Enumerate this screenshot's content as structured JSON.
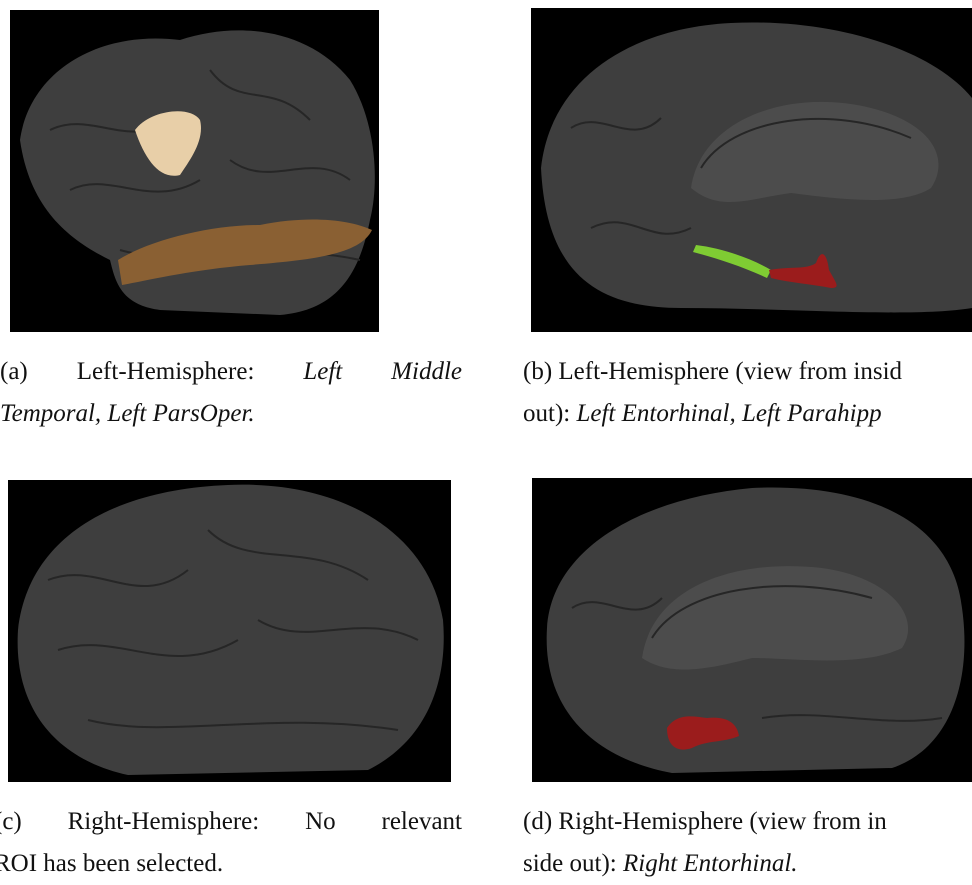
{
  "panels": [
    {
      "caption": [
        [
          {
            "text": "(a) Left-Hemisphere:",
            "style": "normal"
          },
          {
            "text": "Left Middle",
            "style": "italic"
          }
        ],
        [
          {
            "text": "Temporal, Left ParsOper.",
            "style": "italic"
          }
        ]
      ]
    },
    {
      "caption": [
        [
          {
            "text": "(b) Left-Hemisphere (view from insid",
            "style": "normal"
          }
        ],
        [
          {
            "text": "out):",
            "style": "normal"
          },
          {
            "text": "Left Entorhinal, Left Parahipp",
            "style": "italic"
          }
        ]
      ]
    },
    {
      "caption": [
        [
          {
            "text": "(c) Right-Hemisphere: No relevant",
            "style": "normal"
          }
        ],
        [
          {
            "text": "ROI has been selected.",
            "style": "normal"
          }
        ]
      ]
    },
    {
      "caption": [
        [
          {
            "text": "(d) Right-Hemisphere (view from in",
            "style": "normal"
          }
        ],
        [
          {
            "text": "side out):",
            "style": "normal"
          },
          {
            "text": "Right Entorhinal.",
            "style": "italic"
          }
        ]
      ]
    }
  ]
}
